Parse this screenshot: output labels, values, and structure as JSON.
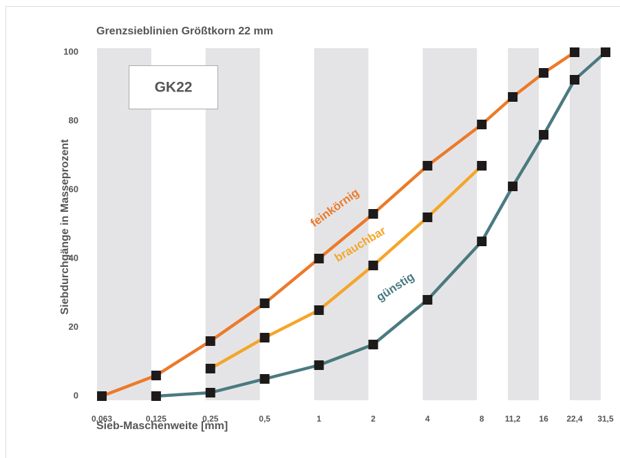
{
  "chart_data": {
    "type": "line",
    "title": "Grenzsieblinien Größtkorn 22 mm",
    "box_label": "GK22",
    "xlabel": "Sieb-Maschenweite [mm]",
    "ylabel": "Siebdurchgänge in Masseprozent",
    "categories": [
      "0,063",
      "0,125",
      "0,25",
      "0,5",
      "1",
      "2",
      "4",
      "8",
      "11,2",
      "16",
      "22,4",
      "31,5"
    ],
    "series": [
      {
        "name": "feinkörnig",
        "color": "#ec7a2a",
        "values": [
          0,
          6,
          16,
          27,
          40,
          53,
          67,
          79,
          87,
          94,
          100,
          null
        ]
      },
      {
        "name": "brauchbar",
        "color": "#f5a52a",
        "values": [
          null,
          null,
          8,
          17,
          25,
          38,
          52,
          67,
          null,
          null,
          null,
          null
        ]
      },
      {
        "name": "günstig",
        "color": "#4a7a80",
        "values": [
          null,
          0,
          1,
          5,
          9,
          15,
          28,
          45,
          61,
          76,
          92,
          100
        ]
      }
    ],
    "ylim": [
      0,
      100
    ],
    "yticks": [
      0,
      20,
      40,
      60,
      80,
      100
    ],
    "marker_color": "#1e1a1a",
    "band_color": "#e4e4e6"
  }
}
